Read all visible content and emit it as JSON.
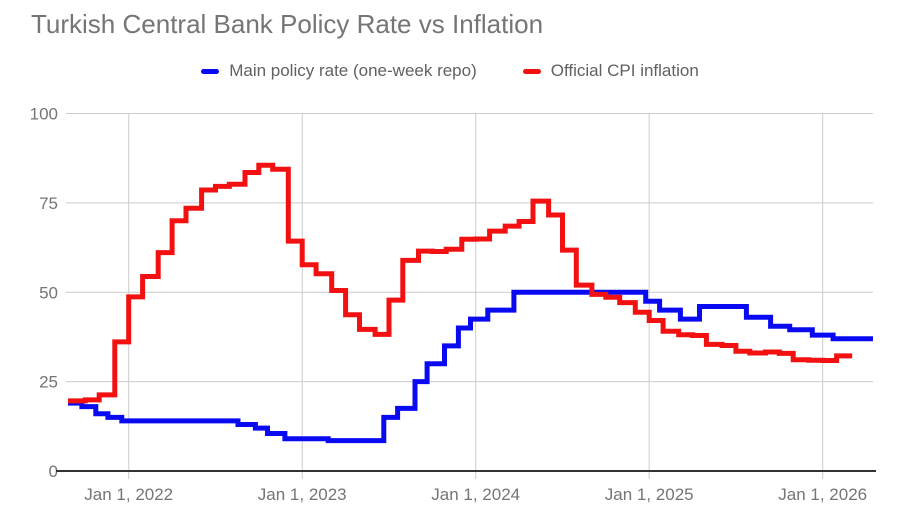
{
  "title": "Turkish Central Bank Policy Rate vs Inflation",
  "legend": {
    "items": [
      {
        "label": "Main policy rate (one-week repo)",
        "color": "#0a0af2"
      },
      {
        "label": "Official CPI inflation",
        "color": "#f21010"
      }
    ]
  },
  "chart_data": {
    "type": "line",
    "step": "after",
    "title": "Turkish Central Bank Policy Rate vs Inflation",
    "legend_position": "top",
    "grid": true,
    "grid_color": "#cccccc",
    "baseline_color": "#333333",
    "axis_text_color": "#757575",
    "x_axis": {
      "range": [
        2021.65,
        2026.29
      ],
      "ticks": [
        {
          "t": 2022,
          "label": "Jan 1, 2022"
        },
        {
          "t": 2023,
          "label": "Jan 1, 2023"
        },
        {
          "t": 2024,
          "label": "Jan 1, 2024"
        },
        {
          "t": 2025,
          "label": "Jan 1, 2025"
        },
        {
          "t": 2026,
          "label": "Jan 1, 2026"
        }
      ]
    },
    "y_axis": {
      "range": [
        0,
        100
      ],
      "ticks": [
        0,
        25,
        50,
        75,
        100
      ]
    },
    "series": [
      {
        "id": "policy-rate",
        "name": "Main policy rate (one-week repo)",
        "color": "#0a0af2",
        "end_x": 2026.29,
        "points": [
          [
            2021.65,
            19
          ],
          [
            2021.73,
            18
          ],
          [
            2021.81,
            16
          ],
          [
            2021.88,
            15
          ],
          [
            2021.96,
            14
          ],
          [
            2022.63,
            13
          ],
          [
            2022.73,
            12
          ],
          [
            2022.8,
            10.5
          ],
          [
            2022.9,
            9
          ],
          [
            2023.15,
            8.5
          ],
          [
            2023.47,
            15
          ],
          [
            2023.55,
            17.5
          ],
          [
            2023.65,
            25
          ],
          [
            2023.72,
            30
          ],
          [
            2023.82,
            35
          ],
          [
            2023.9,
            40
          ],
          [
            2023.97,
            42.5
          ],
          [
            2024.07,
            45
          ],
          [
            2024.22,
            50
          ],
          [
            2024.98,
            47.5
          ],
          [
            2025.06,
            45
          ],
          [
            2025.18,
            42.5
          ],
          [
            2025.29,
            46
          ],
          [
            2025.56,
            43
          ],
          [
            2025.7,
            40.5
          ],
          [
            2025.81,
            39.5
          ],
          [
            2025.94,
            38
          ],
          [
            2026.06,
            37
          ]
        ]
      },
      {
        "id": "cpi-inflation",
        "name": "Official CPI inflation",
        "color": "#f21010",
        "end_x": 2026.17,
        "points": [
          [
            2021.65,
            19.6
          ],
          [
            2021.75,
            19.9
          ],
          [
            2021.83,
            21.3
          ],
          [
            2021.92,
            36.1
          ],
          [
            2022.0,
            48.7
          ],
          [
            2022.08,
            54.4
          ],
          [
            2022.17,
            61.1
          ],
          [
            2022.25,
            70.0
          ],
          [
            2022.33,
            73.5
          ],
          [
            2022.42,
            78.6
          ],
          [
            2022.5,
            79.6
          ],
          [
            2022.58,
            80.2
          ],
          [
            2022.67,
            83.5
          ],
          [
            2022.75,
            85.5
          ],
          [
            2022.83,
            84.4
          ],
          [
            2022.92,
            64.3
          ],
          [
            2023.0,
            57.7
          ],
          [
            2023.08,
            55.2
          ],
          [
            2023.17,
            50.5
          ],
          [
            2023.25,
            43.7
          ],
          [
            2023.33,
            39.6
          ],
          [
            2023.42,
            38.2
          ],
          [
            2023.5,
            47.8
          ],
          [
            2023.58,
            58.9
          ],
          [
            2023.67,
            61.5
          ],
          [
            2023.75,
            61.4
          ],
          [
            2023.83,
            62.0
          ],
          [
            2023.92,
            64.8
          ],
          [
            2024.0,
            64.9
          ],
          [
            2024.08,
            67.1
          ],
          [
            2024.17,
            68.5
          ],
          [
            2024.25,
            69.8
          ],
          [
            2024.33,
            75.5
          ],
          [
            2024.42,
            71.6
          ],
          [
            2024.5,
            61.8
          ],
          [
            2024.58,
            52.0
          ],
          [
            2024.67,
            49.4
          ],
          [
            2024.75,
            48.6
          ],
          [
            2024.83,
            47.1
          ],
          [
            2024.92,
            44.4
          ],
          [
            2025.0,
            42.1
          ],
          [
            2025.08,
            39.1
          ],
          [
            2025.17,
            38.1
          ],
          [
            2025.25,
            37.9
          ],
          [
            2025.33,
            35.4
          ],
          [
            2025.42,
            35.1
          ],
          [
            2025.5,
            33.5
          ],
          [
            2025.58,
            33.0
          ],
          [
            2025.67,
            33.3
          ],
          [
            2025.75,
            32.9
          ],
          [
            2025.83,
            31.1
          ],
          [
            2025.92,
            31.0
          ],
          [
            2026.0,
            30.9
          ],
          [
            2026.08,
            32.2
          ]
        ]
      }
    ]
  }
}
